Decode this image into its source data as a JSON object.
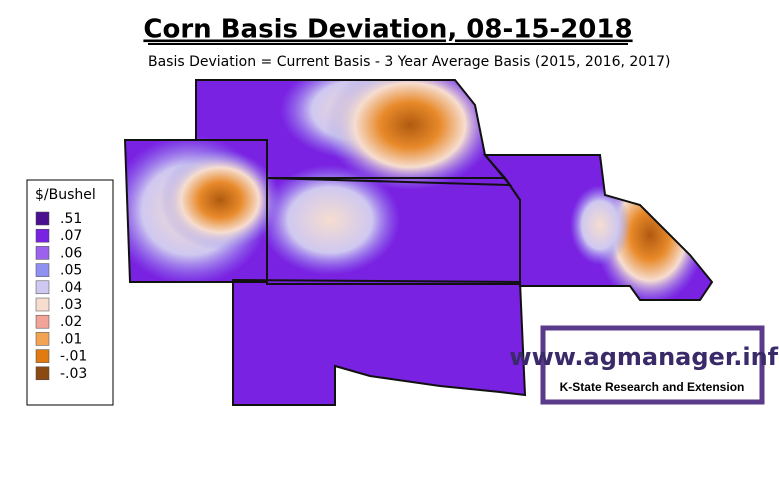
{
  "header": {
    "title": "Corn Basis Deviation, 08-15-2018",
    "subtitle": "Basis Deviation = Current Basis - 3 Year Average Basis (2015, 2016, 2017)"
  },
  "legend": {
    "title": "$/Bushel",
    "items": [
      {
        "label": ".51",
        "color": "#4a1090"
      },
      {
        "label": ".07",
        "color": "#7a22e2"
      },
      {
        "label": ".06",
        "color": "#9c62ee"
      },
      {
        "label": ".05",
        "color": "#8f90f2"
      },
      {
        "label": ".04",
        "color": "#cfc8f0"
      },
      {
        "label": ".03",
        "color": "#f6ddd0"
      },
      {
        "label": ".02",
        "color": "#f2a498"
      },
      {
        "label": ".01",
        "color": "#f2a454"
      },
      {
        "label": "-.01",
        "color": "#e27a12"
      },
      {
        "label": "-.03",
        "color": "#8b4a12"
      }
    ]
  },
  "logo": {
    "url": "www.agmanager.info",
    "org": "K-State Research and Extension"
  }
}
